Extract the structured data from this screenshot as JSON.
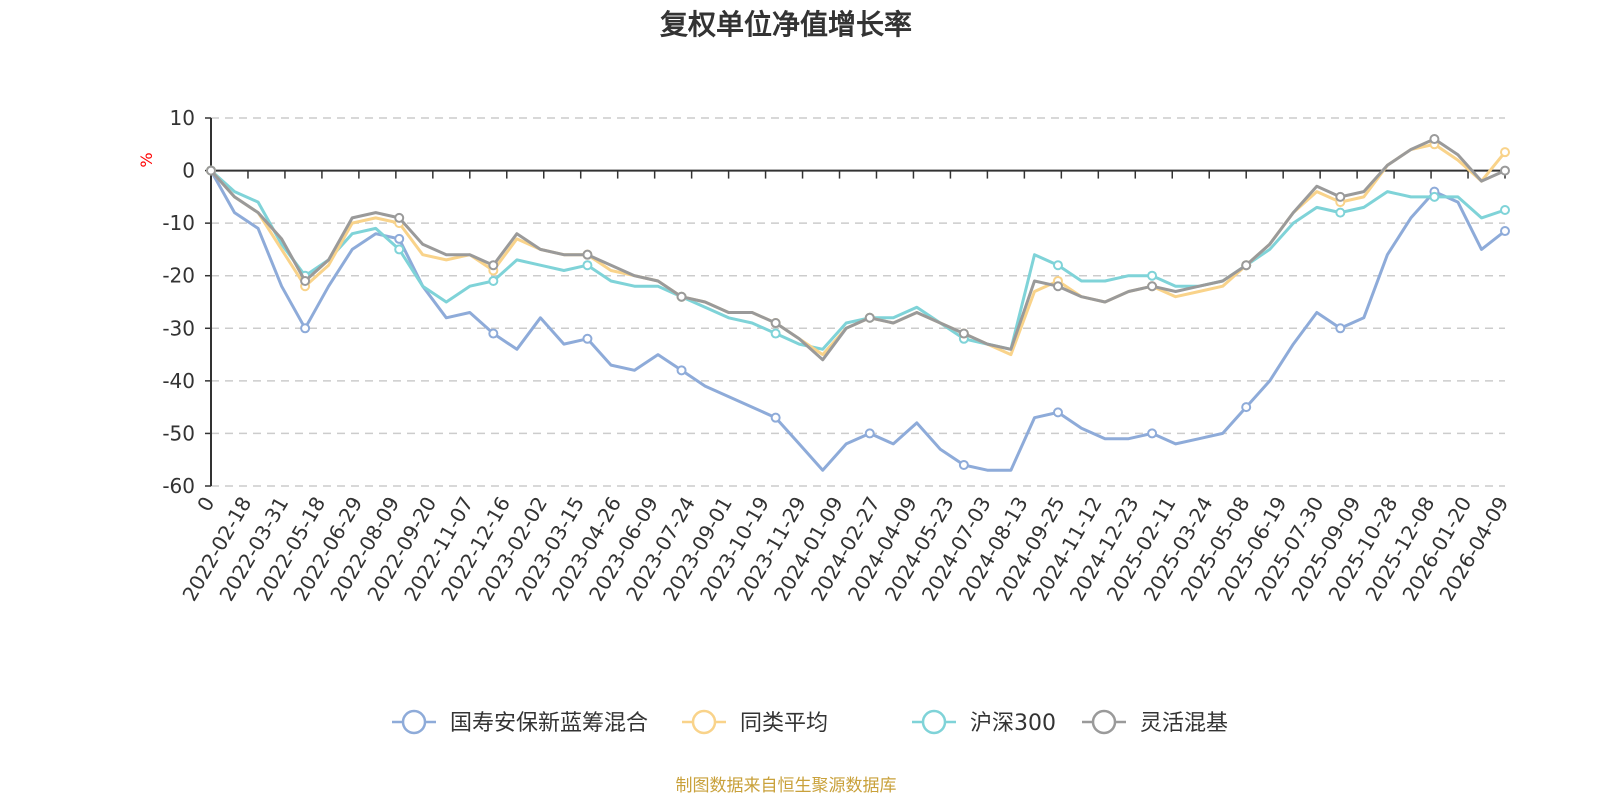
{
  "chart_data": {
    "type": "line",
    "title": "复权单位净值增长率",
    "ylabel": "%",
    "ylim": [
      -60,
      10
    ],
    "y_ticks": [
      10,
      0,
      -10,
      -20,
      -30,
      -40,
      -50,
      -60
    ],
    "grid": true,
    "legend_position": "bottom",
    "source_note": "制图数据来自恒生聚源数据库",
    "x_tick_labels": [
      "0",
      "2022-02-18",
      "2022-03-31",
      "2022-05-18",
      "2022-06-29",
      "2022-08-09",
      "2022-09-20",
      "2022-11-07",
      "2022-12-16",
      "2023-02-02",
      "2023-03-15",
      "2023-04-26",
      "2023-06-09",
      "2023-07-24",
      "2023-09-01",
      "2023-10-19",
      "2023-11-29",
      "2024-01-09",
      "2024-02-27",
      "2024-04-09",
      "2024-05-23",
      "2024-07-03",
      "2024-08-13",
      "2024-09-25",
      "2024-11-12",
      "2024-12-23",
      "2025-02-11",
      "2025-03-24",
      "2025-05-08",
      "2025-06-19",
      "2025-07-30",
      "2025-09-09",
      "2025-10-28",
      "2025-12-08",
      "2026-01-20",
      "2026-04-09"
    ],
    "series": [
      {
        "name": "国寿安保新蓝筹混合",
        "color": "#8eabd9",
        "values": [
          0,
          -8,
          -11,
          -22,
          -30,
          -22,
          -15,
          -12,
          -13,
          -22,
          -28,
          -27,
          -31,
          -34,
          -28,
          -33,
          -32,
          -37,
          -38,
          -35,
          -38,
          -41,
          -43,
          -45,
          -47,
          -52,
          -57,
          -52,
          -50,
          -52,
          -48,
          -53,
          -56,
          -57,
          -57,
          -47,
          -46,
          -49,
          -51,
          -51,
          -50,
          -52,
          -51,
          -50,
          -45,
          -40,
          -33,
          -27,
          -30,
          -28,
          -16,
          -9,
          -4,
          -6,
          -15,
          -11.5
        ]
      },
      {
        "name": "同类平均",
        "color": "#f9d38a",
        "values": [
          0,
          -5,
          -8,
          -15,
          -22,
          -18,
          -10,
          -9,
          -10,
          -16,
          -17,
          -16,
          -19,
          -13,
          -15,
          -16,
          -16,
          -19,
          -20,
          -21,
          -24,
          -25,
          -27,
          -27,
          -29,
          -32,
          -35,
          -30,
          -28,
          -29,
          -27,
          -29,
          -31,
          -33,
          -35,
          -23,
          -21,
          -24,
          -25,
          -23,
          -22,
          -24,
          -23,
          -22,
          -18,
          -14,
          -8,
          -4,
          -6,
          -5,
          1,
          4,
          5,
          2,
          -2,
          3.5
        ]
      },
      {
        "name": "沪深300",
        "color": "#7fd3d8",
        "values": [
          0,
          -4,
          -6,
          -14,
          -20,
          -17,
          -12,
          -11,
          -15,
          -22,
          -25,
          -22,
          -21,
          -17,
          -18,
          -19,
          -18,
          -21,
          -22,
          -22,
          -24,
          -26,
          -28,
          -29,
          -31,
          -33,
          -34,
          -29,
          -28,
          -28,
          -26,
          -29,
          -32,
          -33,
          -34,
          -16,
          -18,
          -21,
          -21,
          -20,
          -20,
          -22,
          -22,
          -21,
          -18,
          -15,
          -10,
          -7,
          -8,
          -7,
          -4,
          -5,
          -5,
          -5,
          -9,
          -7.5
        ]
      },
      {
        "name": "灵活混基",
        "color": "#9a9a9a",
        "values": [
          0,
          -5,
          -8,
          -13,
          -21,
          -17,
          -9,
          -8,
          -9,
          -14,
          -16,
          -16,
          -18,
          -12,
          -15,
          -16,
          -16,
          -18,
          -20,
          -21,
          -24,
          -25,
          -27,
          -27,
          -29,
          -32,
          -36,
          -30,
          -28,
          -29,
          -27,
          -29,
          -31,
          -33,
          -34,
          -21,
          -22,
          -24,
          -25,
          -23,
          -22,
          -23,
          -22,
          -21,
          -18,
          -14,
          -8,
          -3,
          -5,
          -4,
          1,
          4,
          6,
          3,
          -2,
          0
        ]
      }
    ]
  }
}
